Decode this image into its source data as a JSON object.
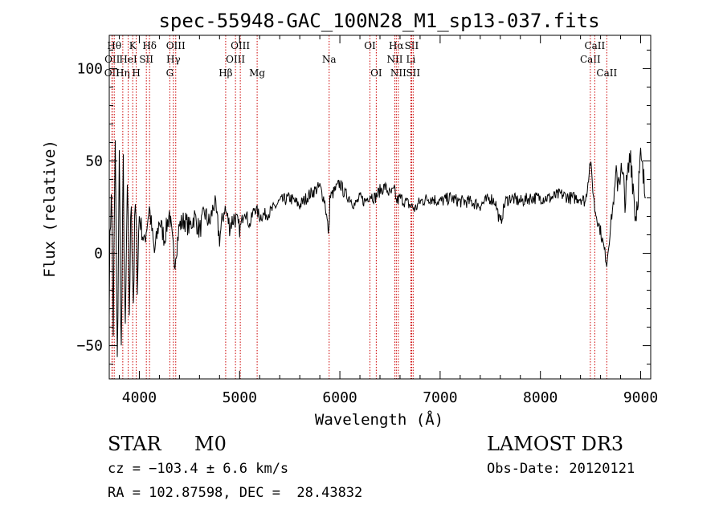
{
  "chart_data": {
    "type": "line",
    "title": "spec-55948-GAC_100N28_M1_sp13-037.fits",
    "xlabel": "Wavelength (Å)",
    "ylabel": "Flux (relative)",
    "xlim": [
      3700,
      9100
    ],
    "ylim": [
      -68,
      118
    ],
    "x_ticks": [
      4000,
      5000,
      6000,
      7000,
      8000,
      9000
    ],
    "x_tick_labels": [
      "4000",
      "5000",
      "6000",
      "7000",
      "8000",
      "9000"
    ],
    "y_ticks": [
      -50,
      0,
      50,
      100
    ],
    "y_tick_labels": [
      "−50",
      "0",
      "50",
      "100"
    ],
    "series": [
      {
        "name": "spectrum",
        "x": [
          3700,
          3720,
          3740,
          3760,
          3780,
          3800,
          3820,
          3840,
          3860,
          3880,
          3900,
          3920,
          3940,
          3960,
          3980,
          4000,
          4050,
          4100,
          4150,
          4200,
          4250,
          4300,
          4350,
          4400,
          4450,
          4500,
          4550,
          4600,
          4650,
          4700,
          4750,
          4800,
          4850,
          4900,
          4950,
          5000,
          5050,
          5100,
          5150,
          5200,
          5300,
          5400,
          5500,
          5600,
          5700,
          5800,
          5850,
          5890,
          5900,
          5950,
          6000,
          6050,
          6100,
          6150,
          6200,
          6250,
          6300,
          6350,
          6400,
          6450,
          6500,
          6550,
          6563,
          6600,
          6650,
          6700,
          6750,
          6800,
          6900,
          7000,
          7100,
          7200,
          7300,
          7400,
          7500,
          7550,
          7600,
          7650,
          7700,
          7800,
          7900,
          8000,
          8100,
          8200,
          8300,
          8400,
          8450,
          8498,
          8542,
          8600,
          8662,
          8700,
          8750,
          8800,
          8850,
          8900,
          8950,
          9000,
          9050
        ],
        "y": [
          -20,
          40,
          -40,
          60,
          -65,
          50,
          -55,
          45,
          -50,
          35,
          -30,
          30,
          -25,
          25,
          -10,
          20,
          5,
          25,
          0,
          18,
          8,
          22,
          -5,
          15,
          18,
          14,
          20,
          12,
          22,
          16,
          28,
          8,
          25,
          15,
          20,
          12,
          24,
          15,
          25,
          20,
          22,
          28,
          30,
          26,
          32,
          36,
          28,
          10,
          30,
          34,
          38,
          32,
          30,
          26,
          30,
          28,
          32,
          30,
          34,
          36,
          32,
          34,
          28,
          30,
          28,
          26,
          24,
          28,
          30,
          28,
          30,
          28,
          28,
          26,
          30,
          28,
          16,
          28,
          30,
          28,
          30,
          30,
          30,
          32,
          30,
          30,
          28,
          50,
          24,
          12,
          -5,
          15,
          38,
          45,
          30,
          55,
          20,
          50,
          30
        ]
      }
    ],
    "line_markers": [
      {
        "wave": 3727,
        "label": "OII",
        "row": 2
      },
      {
        "wave": 3730,
        "label": "OII",
        "row": 1
      },
      {
        "wave": 3750,
        "label": "Hθ",
        "row": 0
      },
      {
        "wave": 3835,
        "label": "Hη",
        "row": 2
      },
      {
        "wave": 3889,
        "label": "HeI",
        "row": 1
      },
      {
        "wave": 3934,
        "label": "K",
        "row": 0
      },
      {
        "wave": 3969,
        "label": "H",
        "row": 2
      },
      {
        "wave": 4070,
        "label": "SII",
        "row": 1
      },
      {
        "wave": 4102,
        "label": "Hδ",
        "row": 0
      },
      {
        "wave": 4304,
        "label": "G",
        "row": 2
      },
      {
        "wave": 4340,
        "label": "Hγ",
        "row": 1
      },
      {
        "wave": 4363,
        "label": "OIII",
        "row": 0
      },
      {
        "wave": 4861,
        "label": "Hβ",
        "row": 2
      },
      {
        "wave": 4959,
        "label": "OIII",
        "row": 1
      },
      {
        "wave": 5007,
        "label": "OIII",
        "row": 0
      },
      {
        "wave": 5175,
        "label": "Mg",
        "row": 2
      },
      {
        "wave": 5893,
        "label": "Na",
        "row": 1
      },
      {
        "wave": 6300,
        "label": "OI",
        "row": 0
      },
      {
        "wave": 6363,
        "label": "OI",
        "row": 2
      },
      {
        "wave": 6548,
        "label": "NII",
        "row": 1
      },
      {
        "wave": 6563,
        "label": "Hα",
        "row": 0
      },
      {
        "wave": 6583,
        "label": "NII",
        "row": 2
      },
      {
        "wave": 6708,
        "label": "Li",
        "row": 1
      },
      {
        "wave": 6716,
        "label": "SII",
        "row": 0
      },
      {
        "wave": 6731,
        "label": "SII",
        "row": 2
      },
      {
        "wave": 8498,
        "label": "CaII",
        "row": 1
      },
      {
        "wave": 8542,
        "label": "CaII",
        "row": 0
      },
      {
        "wave": 8662,
        "label": "CaII",
        "row": 2
      }
    ]
  },
  "info": {
    "class": "STAR",
    "subclass": "M0",
    "survey": "LAMOST DR3",
    "cz": "cz = −103.4 ± 6.6 km/s",
    "obs_date": "Obs-Date: 20120121",
    "radec": "RA = 102.87598, DEC =  28.43832"
  },
  "colors": {
    "marker": "#cc0000",
    "spectrum": "#000000",
    "axis": "#000000"
  }
}
